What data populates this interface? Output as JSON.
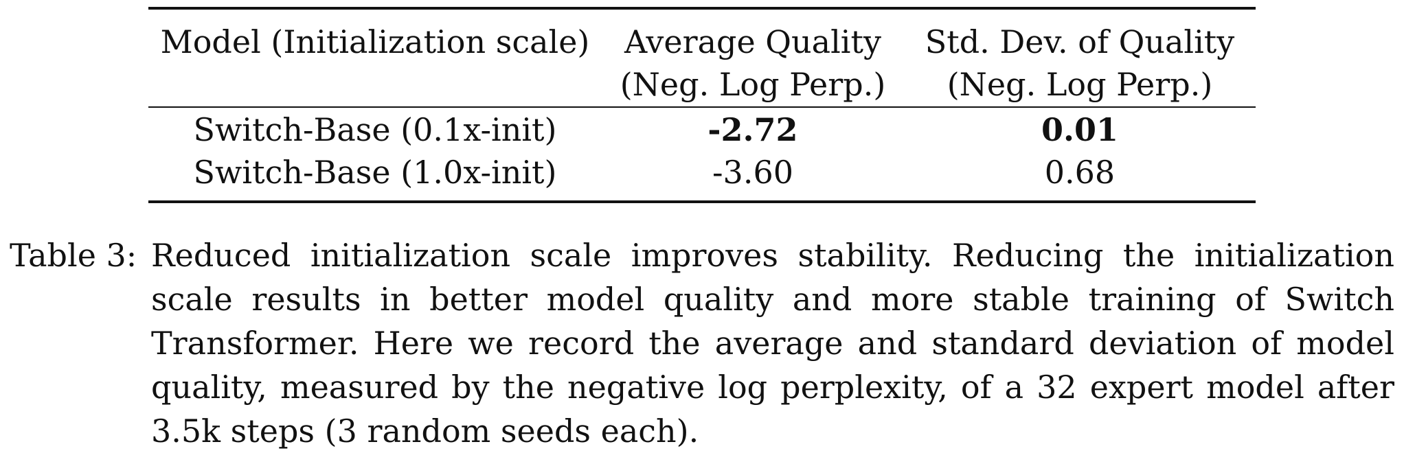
{
  "table": {
    "headers": [
      {
        "line1": "Model (Initialization scale)",
        "line2": ""
      },
      {
        "line1": "Average Quality",
        "line2": "(Neg. Log Perp.)"
      },
      {
        "line1": "Std. Dev. of Quality",
        "line2": "(Neg. Log Perp.)"
      }
    ],
    "rows": [
      {
        "model": "Switch-Base (0.1x-init)",
        "avg": "-2.72",
        "std": "0.01"
      },
      {
        "model": "Switch-Base (1.0x-init)",
        "avg": "-3.60",
        "std": "0.68"
      }
    ]
  },
  "caption": {
    "label": "Table 3:",
    "text": "Reduced initialization scale improves stability. Reducing the initialization scale results in better model quality and more stable training of Switch Transformer. Here we record the average and standard deviation of model quality, measured by the negative log perplexity, of a 32 expert model after 3.5k steps (3 random seeds each)."
  }
}
